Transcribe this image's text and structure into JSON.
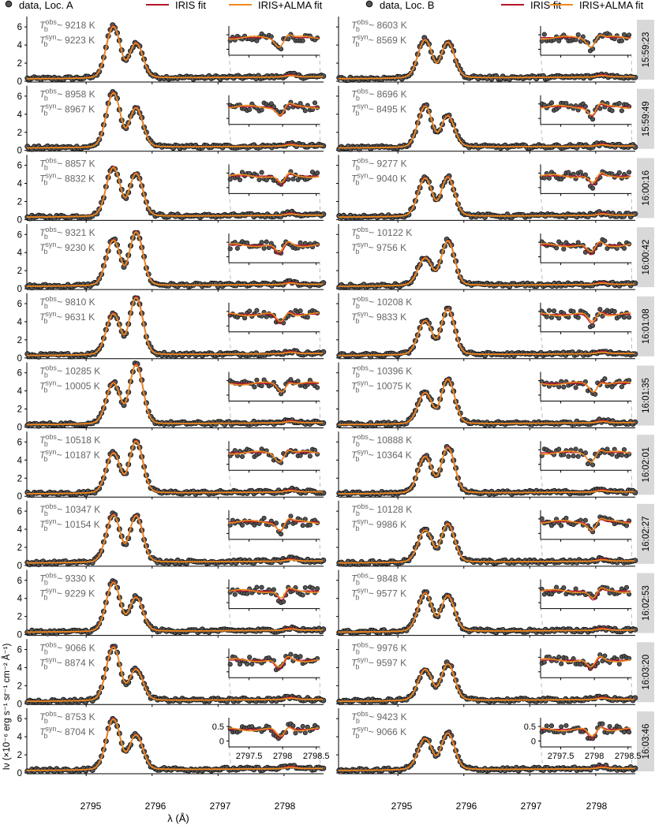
{
  "legend": {
    "data_label": "data, Loc. A",
    "data_label_b": "data, Loc. B",
    "iris_label": "IRIS fit",
    "alma_label": "IRIS+ALMA fit"
  },
  "colors": {
    "data": "#555555",
    "iris": "#b5162b",
    "alma": "#ee8a1e",
    "guide": "#bbbbbb",
    "ann": "#666666",
    "strip": "#d8d8d8"
  },
  "axes": {
    "xlabel": "λ (Å)",
    "ylabel": "Iν (×10⁻⁶ erg s⁻¹ sr⁻¹ cm⁻² Å⁻¹)",
    "x_ticks": [
      "2795",
      "2796",
      "2797",
      "2798"
    ],
    "y_ticks": [
      "0",
      "2",
      "4",
      "6"
    ],
    "inset_x_ticks": [
      "2797.5",
      "2798",
      "2798.5"
    ],
    "inset_y_ticks": [
      "0",
      "0.5"
    ]
  },
  "chart_data": {
    "type": "line",
    "xlim": [
      2794.1,
      2798.6
    ],
    "ylim": [
      0,
      6.8
    ],
    "inset_xlim": [
      2797.2,
      2798.55
    ],
    "inset_ylim": [
      -0.15,
      0.8
    ],
    "times": [
      "15:59:23",
      "15:59:49",
      "16:00:16",
      "16:00:42",
      "16:01:08",
      "16:01:35",
      "16:02:01",
      "16:02:27",
      "16:02:53",
      "16:03:20",
      "16:03:46"
    ],
    "series": [
      "data",
      "IRIS fit",
      "IRIS+ALMA fit"
    ],
    "locA": [
      {
        "k2v": 5.6,
        "k2r": 3.7,
        "tobs": "9218 K",
        "tsyn": "9223 K"
      },
      {
        "k2v": 5.9,
        "k2r": 4.2,
        "tobs": "8958 K",
        "tsyn": "8967 K"
      },
      {
        "k2v": 5.3,
        "k2r": 4.6,
        "tobs": "8857 K",
        "tsyn": "8832 K"
      },
      {
        "k2v": 4.9,
        "k2r": 5.8,
        "tobs": "9321 K",
        "tsyn": "9230 K"
      },
      {
        "k2v": 4.4,
        "k2r": 6.2,
        "tobs": "9810 K",
        "tsyn": "9631 K"
      },
      {
        "k2v": 4.4,
        "k2r": 6.4,
        "tobs": "10285 K",
        "tsyn": "10005 K"
      },
      {
        "k2v": 4.3,
        "k2r": 5.6,
        "tobs": "10518 K",
        "tsyn": "10187 K"
      },
      {
        "k2v": 5.1,
        "k2r": 5.0,
        "tobs": "10347 K",
        "tsyn": "10154 K"
      },
      {
        "k2v": 5.3,
        "k2r": 3.6,
        "tobs": "9330 K",
        "tsyn": "9229 K"
      },
      {
        "k2v": 5.8,
        "k2r": 3.3,
        "tobs": "9066 K",
        "tsyn": "8874 K"
      },
      {
        "k2v": 5.5,
        "k2r": 3.7,
        "tobs": "8753 K",
        "tsyn": "8704 K"
      }
    ],
    "locB": [
      {
        "k2v": 4.1,
        "k2r": 3.8,
        "tobs": "8603 K",
        "tsyn": "8569 K"
      },
      {
        "k2v": 4.4,
        "k2r": 3.3,
        "tobs": "8696 K",
        "tsyn": "8495 K"
      },
      {
        "k2v": 4.1,
        "k2r": 4.2,
        "tobs": "9277 K",
        "tsyn": "9040 K"
      },
      {
        "k2v": 2.9,
        "k2r": 4.8,
        "tobs": "10122 K",
        "tsyn": "9756 K"
      },
      {
        "k2v": 3.6,
        "k2r": 4.9,
        "tobs": "10208 K",
        "tsyn": "9833 K"
      },
      {
        "k2v": 3.3,
        "k2r": 4.8,
        "tobs": "10396 K",
        "tsyn": "10075 K"
      },
      {
        "k2v": 3.9,
        "k2r": 4.9,
        "tobs": "10888 K",
        "tsyn": "10364 K"
      },
      {
        "k2v": 3.4,
        "k2r": 4.1,
        "tobs": "10128 K",
        "tsyn": "9986 K"
      },
      {
        "k2v": 4.1,
        "k2r": 3.8,
        "tobs": "9848 K",
        "tsyn": "9577 K"
      },
      {
        "k2v": 3.3,
        "k2r": 3.9,
        "tobs": "9976 K",
        "tsyn": "9597 K"
      },
      {
        "k2v": 3.3,
        "k2r": 3.9,
        "tobs": "9423 K",
        "tsyn": "9066 K"
      }
    ]
  }
}
